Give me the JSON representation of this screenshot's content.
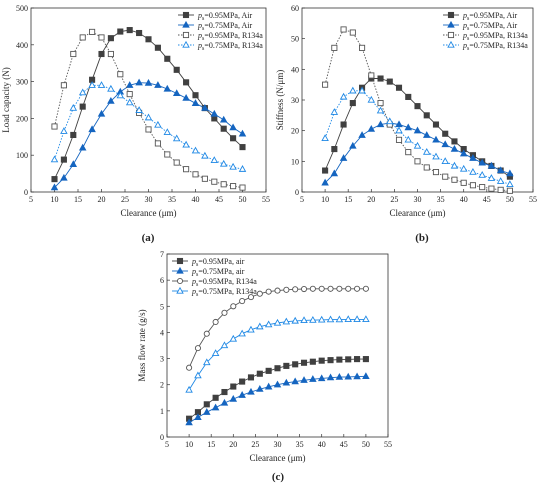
{
  "chart_data": [
    {
      "type": "line",
      "panel_label": "(a)",
      "xlabel": "Clearance (μm)",
      "ylabel": "Load capacity (N)",
      "xlim": [
        5,
        55
      ],
      "ylim": [
        0,
        500
      ],
      "xticks": [
        5,
        10,
        15,
        20,
        25,
        30,
        35,
        40,
        45,
        50,
        55
      ],
      "yticks": [
        0,
        100,
        200,
        300,
        400,
        500
      ],
      "legend_position": "top-right",
      "x": [
        10,
        12,
        14,
        16,
        18,
        20,
        22,
        24,
        26,
        28,
        30,
        32,
        34,
        36,
        38,
        40,
        42,
        44,
        46,
        48,
        50
      ],
      "series": [
        {
          "name": "p_s=0.95MPa, Air",
          "color": "#404040",
          "line": "solid",
          "marker": "square-filled",
          "values": [
            35,
            88,
            155,
            232,
            305,
            375,
            418,
            436,
            440,
            432,
            415,
            392,
            362,
            332,
            298,
            263,
            228,
            200,
            172,
            146,
            122
          ]
        },
        {
          "name": "p_s=0.75MPa, Air",
          "color": "#1565c0",
          "line": "solid",
          "marker": "triangle-filled",
          "values": [
            12,
            38,
            75,
            120,
            170,
            212,
            247,
            272,
            290,
            297,
            296,
            290,
            280,
            268,
            255,
            241,
            228,
            212,
            196,
            175,
            158
          ]
        },
        {
          "name": "p_s=0.95MPa, R134a",
          "color": "#555555",
          "line": "dotted",
          "marker": "square-open",
          "values": [
            178,
            290,
            375,
            420,
            435,
            420,
            375,
            320,
            266,
            215,
            170,
            132,
            102,
            80,
            62,
            48,
            36,
            28,
            21,
            16,
            12
          ]
        },
        {
          "name": "p_s=0.75MPa, R134a",
          "color": "#1e88e5",
          "line": "dotted",
          "marker": "triangle-open",
          "values": [
            88,
            165,
            228,
            270,
            290,
            290,
            280,
            262,
            243,
            222,
            202,
            182,
            162,
            145,
            128,
            112,
            98,
            86,
            76,
            68,
            62
          ]
        }
      ]
    },
    {
      "type": "line",
      "panel_label": "(b)",
      "xlabel": "Clearance (μm)",
      "ylabel": "Stiffness (N/μm)",
      "xlim": [
        5,
        55
      ],
      "ylim": [
        0,
        60
      ],
      "xticks": [
        5,
        10,
        15,
        20,
        25,
        30,
        35,
        40,
        45,
        50,
        55
      ],
      "yticks": [
        0,
        10,
        20,
        30,
        40,
        50,
        60
      ],
      "legend_position": "top-right",
      "x": [
        10,
        12,
        14,
        16,
        18,
        20,
        22,
        24,
        26,
        28,
        30,
        32,
        34,
        36,
        38,
        40,
        42,
        44,
        46,
        48,
        50
      ],
      "series": [
        {
          "name": "p_s=0.95MPa, Air",
          "color": "#404040",
          "line": "solid",
          "marker": "square-filled",
          "values": [
            7,
            14,
            22,
            29,
            34,
            37,
            37,
            36,
            34,
            31,
            28,
            25,
            22,
            19,
            16.5,
            14,
            12,
            10,
            8.5,
            7,
            5
          ]
        },
        {
          "name": "p_s=0.75MPa, Air",
          "color": "#1565c0",
          "line": "solid",
          "marker": "triangle-filled",
          "values": [
            3,
            6,
            11,
            15,
            18.5,
            20.5,
            22,
            22.5,
            22,
            21,
            20,
            18.5,
            17,
            15.5,
            14,
            12.5,
            11,
            9.5,
            8.5,
            7,
            6
          ]
        },
        {
          "name": "p_s=0.95MPa, R134a",
          "color": "#555555",
          "line": "dotted",
          "marker": "square-open",
          "values": [
            35,
            47,
            53,
            52,
            47,
            38,
            29,
            22,
            17,
            13,
            10,
            8,
            6.5,
            5,
            4,
            3,
            2.2,
            1.6,
            1.1,
            0.7,
            0.4
          ]
        },
        {
          "name": "p_s=0.75MPa, R134a",
          "color": "#1e88e5",
          "line": "dotted",
          "marker": "triangle-open",
          "values": [
            17.5,
            26,
            31,
            33,
            33,
            30,
            26.5,
            23,
            20,
            17,
            15,
            13,
            11.5,
            10,
            8.5,
            7.5,
            6.5,
            5.5,
            4.5,
            3.5,
            2.5
          ]
        }
      ]
    },
    {
      "type": "line",
      "panel_label": "(c)",
      "xlabel": "Clearance (μm)",
      "ylabel": "Mass flow rate (g/s)",
      "xlim": [
        5,
        55
      ],
      "ylim": [
        0,
        7
      ],
      "xticks": [
        5,
        10,
        15,
        20,
        25,
        30,
        35,
        40,
        45,
        50,
        55
      ],
      "yticks": [
        0,
        1,
        2,
        3,
        4,
        5,
        6,
        7
      ],
      "legend_position": "top-left",
      "x": [
        10,
        12,
        14,
        16,
        18,
        20,
        22,
        24,
        26,
        28,
        30,
        32,
        34,
        36,
        38,
        40,
        42,
        44,
        46,
        48,
        50
      ],
      "series": [
        {
          "name": "p_s=0.95MPa, air",
          "color": "#404040",
          "line": "solid",
          "marker": "square-filled",
          "values": [
            0.7,
            0.95,
            1.25,
            1.5,
            1.72,
            1.93,
            2.12,
            2.28,
            2.42,
            2.53,
            2.63,
            2.72,
            2.78,
            2.84,
            2.88,
            2.92,
            2.94,
            2.96,
            2.97,
            2.98,
            2.98
          ]
        },
        {
          "name": "p_s=0.75MPa, air",
          "color": "#1565c0",
          "line": "solid",
          "marker": "triangle-filled",
          "values": [
            0.55,
            0.75,
            0.95,
            1.12,
            1.3,
            1.45,
            1.6,
            1.72,
            1.83,
            1.92,
            2.0,
            2.07,
            2.12,
            2.17,
            2.21,
            2.24,
            2.27,
            2.29,
            2.3,
            2.31,
            2.32
          ]
        },
        {
          "name": "p_s=0.95MPa, R134a",
          "color": "#555555",
          "line": "solid",
          "marker": "circle-open",
          "values": [
            2.65,
            3.4,
            3.95,
            4.4,
            4.75,
            5.0,
            5.2,
            5.35,
            5.48,
            5.56,
            5.6,
            5.63,
            5.65,
            5.66,
            5.67,
            5.67,
            5.67,
            5.67,
            5.67,
            5.67,
            5.67
          ]
        },
        {
          "name": "p_s=0.75MPa, R134a",
          "color": "#1e88e5",
          "line": "solid",
          "marker": "triangle-open",
          "values": [
            1.8,
            2.35,
            2.85,
            3.2,
            3.5,
            3.75,
            3.95,
            4.1,
            4.22,
            4.3,
            4.36,
            4.41,
            4.44,
            4.46,
            4.47,
            4.48,
            4.49,
            4.49,
            4.5,
            4.5,
            4.5
          ]
        }
      ]
    }
  ]
}
